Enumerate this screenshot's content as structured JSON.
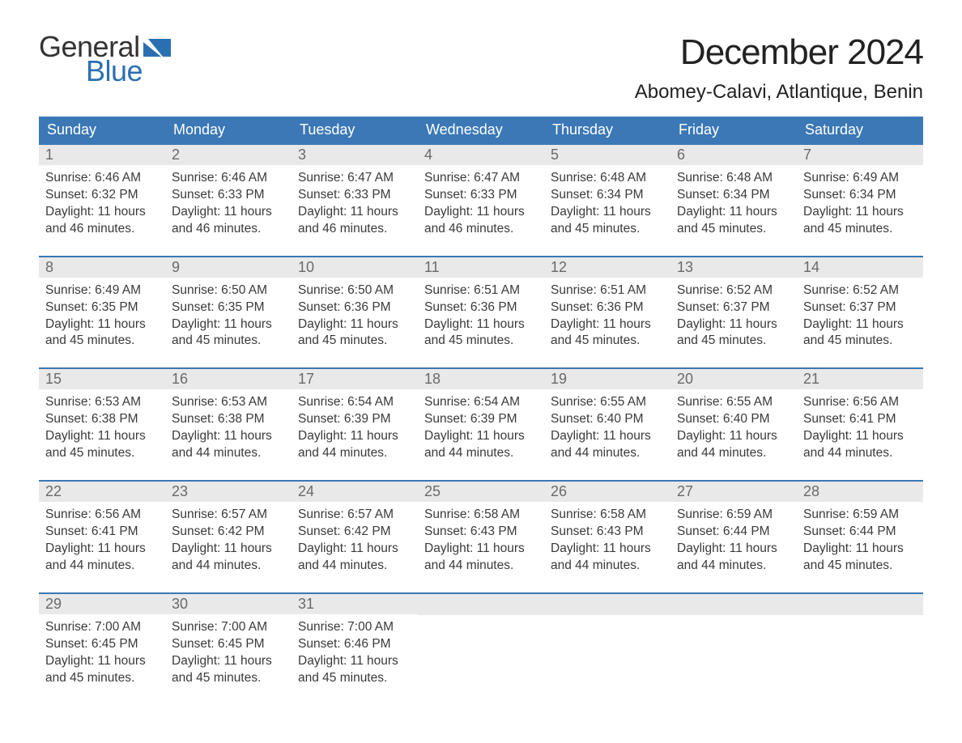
{
  "brand": {
    "general": "General",
    "blue": "Blue"
  },
  "title": "December 2024",
  "location": "Abomey-Calavi, Atlantique, Benin",
  "colors": {
    "header_bg": "#3b78b5",
    "header_text": "#ffffff",
    "daynum_bg": "#e9e9e9",
    "daynum_text": "#6a6a6a",
    "body_text": "#3a3a3a",
    "brand_blue": "#2b6fb3",
    "page_bg": "#ffffff",
    "week_border": "#3b78b5"
  },
  "typography": {
    "title_fontsize": 44,
    "location_fontsize": 24,
    "dayheader_fontsize": 18,
    "daynum_fontsize": 18,
    "cell_fontsize": 15.5,
    "logo_fontsize": 36
  },
  "day_headers": [
    "Sunday",
    "Monday",
    "Tuesday",
    "Wednesday",
    "Thursday",
    "Friday",
    "Saturday"
  ],
  "weeks": [
    [
      {
        "n": "1",
        "sunrise": "Sunrise: 6:46 AM",
        "sunset": "Sunset: 6:32 PM",
        "d1": "Daylight: 11 hours",
        "d2": "and 46 minutes."
      },
      {
        "n": "2",
        "sunrise": "Sunrise: 6:46 AM",
        "sunset": "Sunset: 6:33 PM",
        "d1": "Daylight: 11 hours",
        "d2": "and 46 minutes."
      },
      {
        "n": "3",
        "sunrise": "Sunrise: 6:47 AM",
        "sunset": "Sunset: 6:33 PM",
        "d1": "Daylight: 11 hours",
        "d2": "and 46 minutes."
      },
      {
        "n": "4",
        "sunrise": "Sunrise: 6:47 AM",
        "sunset": "Sunset: 6:33 PM",
        "d1": "Daylight: 11 hours",
        "d2": "and 46 minutes."
      },
      {
        "n": "5",
        "sunrise": "Sunrise: 6:48 AM",
        "sunset": "Sunset: 6:34 PM",
        "d1": "Daylight: 11 hours",
        "d2": "and 45 minutes."
      },
      {
        "n": "6",
        "sunrise": "Sunrise: 6:48 AM",
        "sunset": "Sunset: 6:34 PM",
        "d1": "Daylight: 11 hours",
        "d2": "and 45 minutes."
      },
      {
        "n": "7",
        "sunrise": "Sunrise: 6:49 AM",
        "sunset": "Sunset: 6:34 PM",
        "d1": "Daylight: 11 hours",
        "d2": "and 45 minutes."
      }
    ],
    [
      {
        "n": "8",
        "sunrise": "Sunrise: 6:49 AM",
        "sunset": "Sunset: 6:35 PM",
        "d1": "Daylight: 11 hours",
        "d2": "and 45 minutes."
      },
      {
        "n": "9",
        "sunrise": "Sunrise: 6:50 AM",
        "sunset": "Sunset: 6:35 PM",
        "d1": "Daylight: 11 hours",
        "d2": "and 45 minutes."
      },
      {
        "n": "10",
        "sunrise": "Sunrise: 6:50 AM",
        "sunset": "Sunset: 6:36 PM",
        "d1": "Daylight: 11 hours",
        "d2": "and 45 minutes."
      },
      {
        "n": "11",
        "sunrise": "Sunrise: 6:51 AM",
        "sunset": "Sunset: 6:36 PM",
        "d1": "Daylight: 11 hours",
        "d2": "and 45 minutes."
      },
      {
        "n": "12",
        "sunrise": "Sunrise: 6:51 AM",
        "sunset": "Sunset: 6:36 PM",
        "d1": "Daylight: 11 hours",
        "d2": "and 45 minutes."
      },
      {
        "n": "13",
        "sunrise": "Sunrise: 6:52 AM",
        "sunset": "Sunset: 6:37 PM",
        "d1": "Daylight: 11 hours",
        "d2": "and 45 minutes."
      },
      {
        "n": "14",
        "sunrise": "Sunrise: 6:52 AM",
        "sunset": "Sunset: 6:37 PM",
        "d1": "Daylight: 11 hours",
        "d2": "and 45 minutes."
      }
    ],
    [
      {
        "n": "15",
        "sunrise": "Sunrise: 6:53 AM",
        "sunset": "Sunset: 6:38 PM",
        "d1": "Daylight: 11 hours",
        "d2": "and 45 minutes."
      },
      {
        "n": "16",
        "sunrise": "Sunrise: 6:53 AM",
        "sunset": "Sunset: 6:38 PM",
        "d1": "Daylight: 11 hours",
        "d2": "and 44 minutes."
      },
      {
        "n": "17",
        "sunrise": "Sunrise: 6:54 AM",
        "sunset": "Sunset: 6:39 PM",
        "d1": "Daylight: 11 hours",
        "d2": "and 44 minutes."
      },
      {
        "n": "18",
        "sunrise": "Sunrise: 6:54 AM",
        "sunset": "Sunset: 6:39 PM",
        "d1": "Daylight: 11 hours",
        "d2": "and 44 minutes."
      },
      {
        "n": "19",
        "sunrise": "Sunrise: 6:55 AM",
        "sunset": "Sunset: 6:40 PM",
        "d1": "Daylight: 11 hours",
        "d2": "and 44 minutes."
      },
      {
        "n": "20",
        "sunrise": "Sunrise: 6:55 AM",
        "sunset": "Sunset: 6:40 PM",
        "d1": "Daylight: 11 hours",
        "d2": "and 44 minutes."
      },
      {
        "n": "21",
        "sunrise": "Sunrise: 6:56 AM",
        "sunset": "Sunset: 6:41 PM",
        "d1": "Daylight: 11 hours",
        "d2": "and 44 minutes."
      }
    ],
    [
      {
        "n": "22",
        "sunrise": "Sunrise: 6:56 AM",
        "sunset": "Sunset: 6:41 PM",
        "d1": "Daylight: 11 hours",
        "d2": "and 44 minutes."
      },
      {
        "n": "23",
        "sunrise": "Sunrise: 6:57 AM",
        "sunset": "Sunset: 6:42 PM",
        "d1": "Daylight: 11 hours",
        "d2": "and 44 minutes."
      },
      {
        "n": "24",
        "sunrise": "Sunrise: 6:57 AM",
        "sunset": "Sunset: 6:42 PM",
        "d1": "Daylight: 11 hours",
        "d2": "and 44 minutes."
      },
      {
        "n": "25",
        "sunrise": "Sunrise: 6:58 AM",
        "sunset": "Sunset: 6:43 PM",
        "d1": "Daylight: 11 hours",
        "d2": "and 44 minutes."
      },
      {
        "n": "26",
        "sunrise": "Sunrise: 6:58 AM",
        "sunset": "Sunset: 6:43 PM",
        "d1": "Daylight: 11 hours",
        "d2": "and 44 minutes."
      },
      {
        "n": "27",
        "sunrise": "Sunrise: 6:59 AM",
        "sunset": "Sunset: 6:44 PM",
        "d1": "Daylight: 11 hours",
        "d2": "and 44 minutes."
      },
      {
        "n": "28",
        "sunrise": "Sunrise: 6:59 AM",
        "sunset": "Sunset: 6:44 PM",
        "d1": "Daylight: 11 hours",
        "d2": "and 45 minutes."
      }
    ],
    [
      {
        "n": "29",
        "sunrise": "Sunrise: 7:00 AM",
        "sunset": "Sunset: 6:45 PM",
        "d1": "Daylight: 11 hours",
        "d2": "and 45 minutes."
      },
      {
        "n": "30",
        "sunrise": "Sunrise: 7:00 AM",
        "sunset": "Sunset: 6:45 PM",
        "d1": "Daylight: 11 hours",
        "d2": "and 45 minutes."
      },
      {
        "n": "31",
        "sunrise": "Sunrise: 7:00 AM",
        "sunset": "Sunset: 6:46 PM",
        "d1": "Daylight: 11 hours",
        "d2": "and 45 minutes."
      },
      null,
      null,
      null,
      null
    ]
  ]
}
